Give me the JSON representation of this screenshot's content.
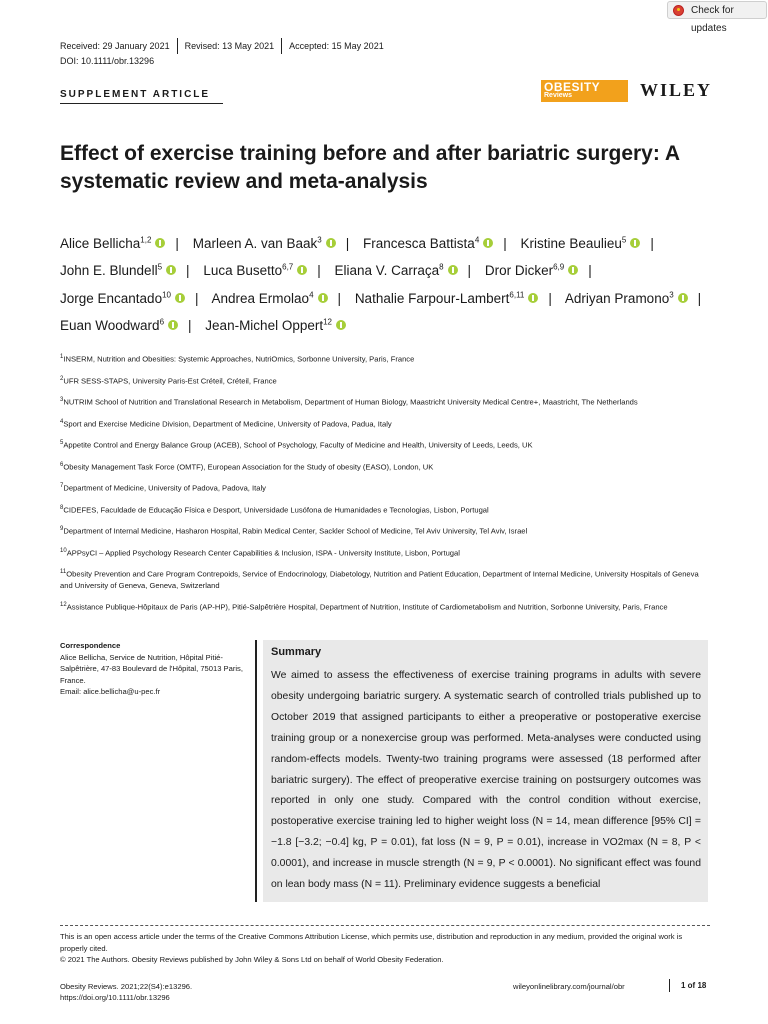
{
  "check_updates": "Check for updates",
  "dates": {
    "received": "Received: 29 January 2021",
    "revised": "Revised: 13 May 2021",
    "accepted": "Accepted: 15 May 2021"
  },
  "doi": "DOI: 10.1111/obr.13296",
  "section": "SUPPLEMENT ARTICLE",
  "journal_logo": {
    "line1": "OBESITY",
    "line2": "Reviews"
  },
  "publisher": "WILEY",
  "title": "Effect of exercise training before and after bariatric surgery: A systematic review and meta-analysis",
  "authors": [
    {
      "name": "Alice Bellicha",
      "sup": "1,2"
    },
    {
      "name": "Marleen A. van Baak",
      "sup": "3"
    },
    {
      "name": "Francesca Battista",
      "sup": "4"
    },
    {
      "name": "Kristine Beaulieu",
      "sup": "5"
    },
    {
      "name": "John E. Blundell",
      "sup": "5"
    },
    {
      "name": "Luca Busetto",
      "sup": "6,7"
    },
    {
      "name": "Eliana V. Carraça",
      "sup": "8"
    },
    {
      "name": "Dror Dicker",
      "sup": "6,9"
    },
    {
      "name": "Jorge Encantado",
      "sup": "10"
    },
    {
      "name": "Andrea Ermolao",
      "sup": "4"
    },
    {
      "name": "Nathalie Farpour-Lambert",
      "sup": "6,11"
    },
    {
      "name": "Adriyan Pramono",
      "sup": "3"
    },
    {
      "name": "Euan Woodward",
      "sup": "6"
    },
    {
      "name": "Jean-Michel Oppert",
      "sup": "12"
    }
  ],
  "affiliations": [
    {
      "num": "1",
      "text": "INSERM, Nutrition and Obesities: Systemic Approaches, NutriOmics, Sorbonne University, Paris, France"
    },
    {
      "num": "2",
      "text": "UFR SESS-STAPS, University Paris-Est Créteil, Créteil, France"
    },
    {
      "num": "3",
      "text": "NUTRIM School of Nutrition and Translational Research in Metabolism, Department of Human Biology, Maastricht University Medical Centre+, Maastricht, The Netherlands"
    },
    {
      "num": "4",
      "text": "Sport and Exercise Medicine Division, Department of Medicine, University of Padova, Padua, Italy"
    },
    {
      "num": "5",
      "text": "Appetite Control and Energy Balance Group (ACEB), School of Psychology, Faculty of Medicine and Health, University of Leeds, Leeds, UK"
    },
    {
      "num": "6",
      "text": "Obesity Management Task Force (OMTF), European Association for the Study of obesity (EASO), London, UK"
    },
    {
      "num": "7",
      "text": "Department of Medicine, University of Padova, Padova, Italy"
    },
    {
      "num": "8",
      "text": "CIDEFES, Faculdade de Educação Física e Desport, Universidade Lusófona de Humanidades e Tecnologias, Lisbon, Portugal"
    },
    {
      "num": "9",
      "text": "Department of Internal Medicine, Hasharon Hospital, Rabin Medical Center, Sackler School of Medicine, Tel Aviv University, Tel Aviv, Israel"
    },
    {
      "num": "10",
      "text": "APPsyCI – Applied Psychology Research Center Capabilities & Inclusion, ISPA - University Institute, Lisbon, Portugal"
    },
    {
      "num": "11",
      "text": "Obesity Prevention and Care Program Contrepoids, Service of Endocrinology, Diabetology, Nutrition and Patient Education, Department of Internal Medicine, University Hospitals of Geneva and University of Geneva, Geneva, Switzerland"
    },
    {
      "num": "12",
      "text": "Assistance Publique-Hôpitaux de Paris (AP-HP), Pitié-Salpêtrière Hospital, Department of Nutrition, Institute of Cardiometabolism and Nutrition, Sorbonne University, Paris, France"
    }
  ],
  "correspondence": {
    "heading": "Correspondence",
    "lines": [
      "Alice Bellicha, Service de Nutrition, Hôpital Pitié-Salpêtrière, 47-83 Boulevard de l'Hôpital, 75013 Paris, France.",
      "Email: alice.bellicha@u-pec.fr"
    ]
  },
  "summary": {
    "heading": "Summary",
    "text": "We aimed to assess the effectiveness of exercise training programs in adults with severe obesity undergoing bariatric surgery. A systematic search of controlled trials published up to October 2019 that assigned participants to either a preoperative or postoperative exercise training group or a nonexercise group was performed. Meta-analyses were conducted using random-effects models. Twenty-two training programs were assessed (18 performed after bariatric surgery). The effect of preoperative exercise training on postsurgery outcomes was reported in only one study. Compared with the control condition without exercise, postoperative exercise training led to higher weight loss (N = 14, mean difference [95% CI] = −1.8 [−3.2; −0.4] kg, P = 0.01), fat loss (N = 9, P = 0.01), increase in VO2max (N = 8, P < 0.0001), and increase in muscle strength (N = 9, P < 0.0001). No significant effect was found on lean body mass (N = 11). Preliminary evidence suggests a beneficial"
  },
  "license": {
    "line1": "This is an open access article under the terms of the Creative Commons Attribution License, which permits use, distribution and reproduction in any medium, provided the original work is properly cited.",
    "line2": "© 2021 The Authors. Obesity Reviews published by John Wiley & Sons Ltd on behalf of World Obesity Federation."
  },
  "footer": {
    "citation": "Obesity Reviews. 2021;22(S4):e13296.",
    "doi_url": "https://doi.org/10.1111/obr.13296",
    "site": "wileyonlinelibrary.com/journal/obr",
    "page": "1 of 18"
  },
  "colors": {
    "orcid": "#a6ce39",
    "journal_logo": "#f2a11c",
    "summary_bg": "#e9e9e9"
  }
}
